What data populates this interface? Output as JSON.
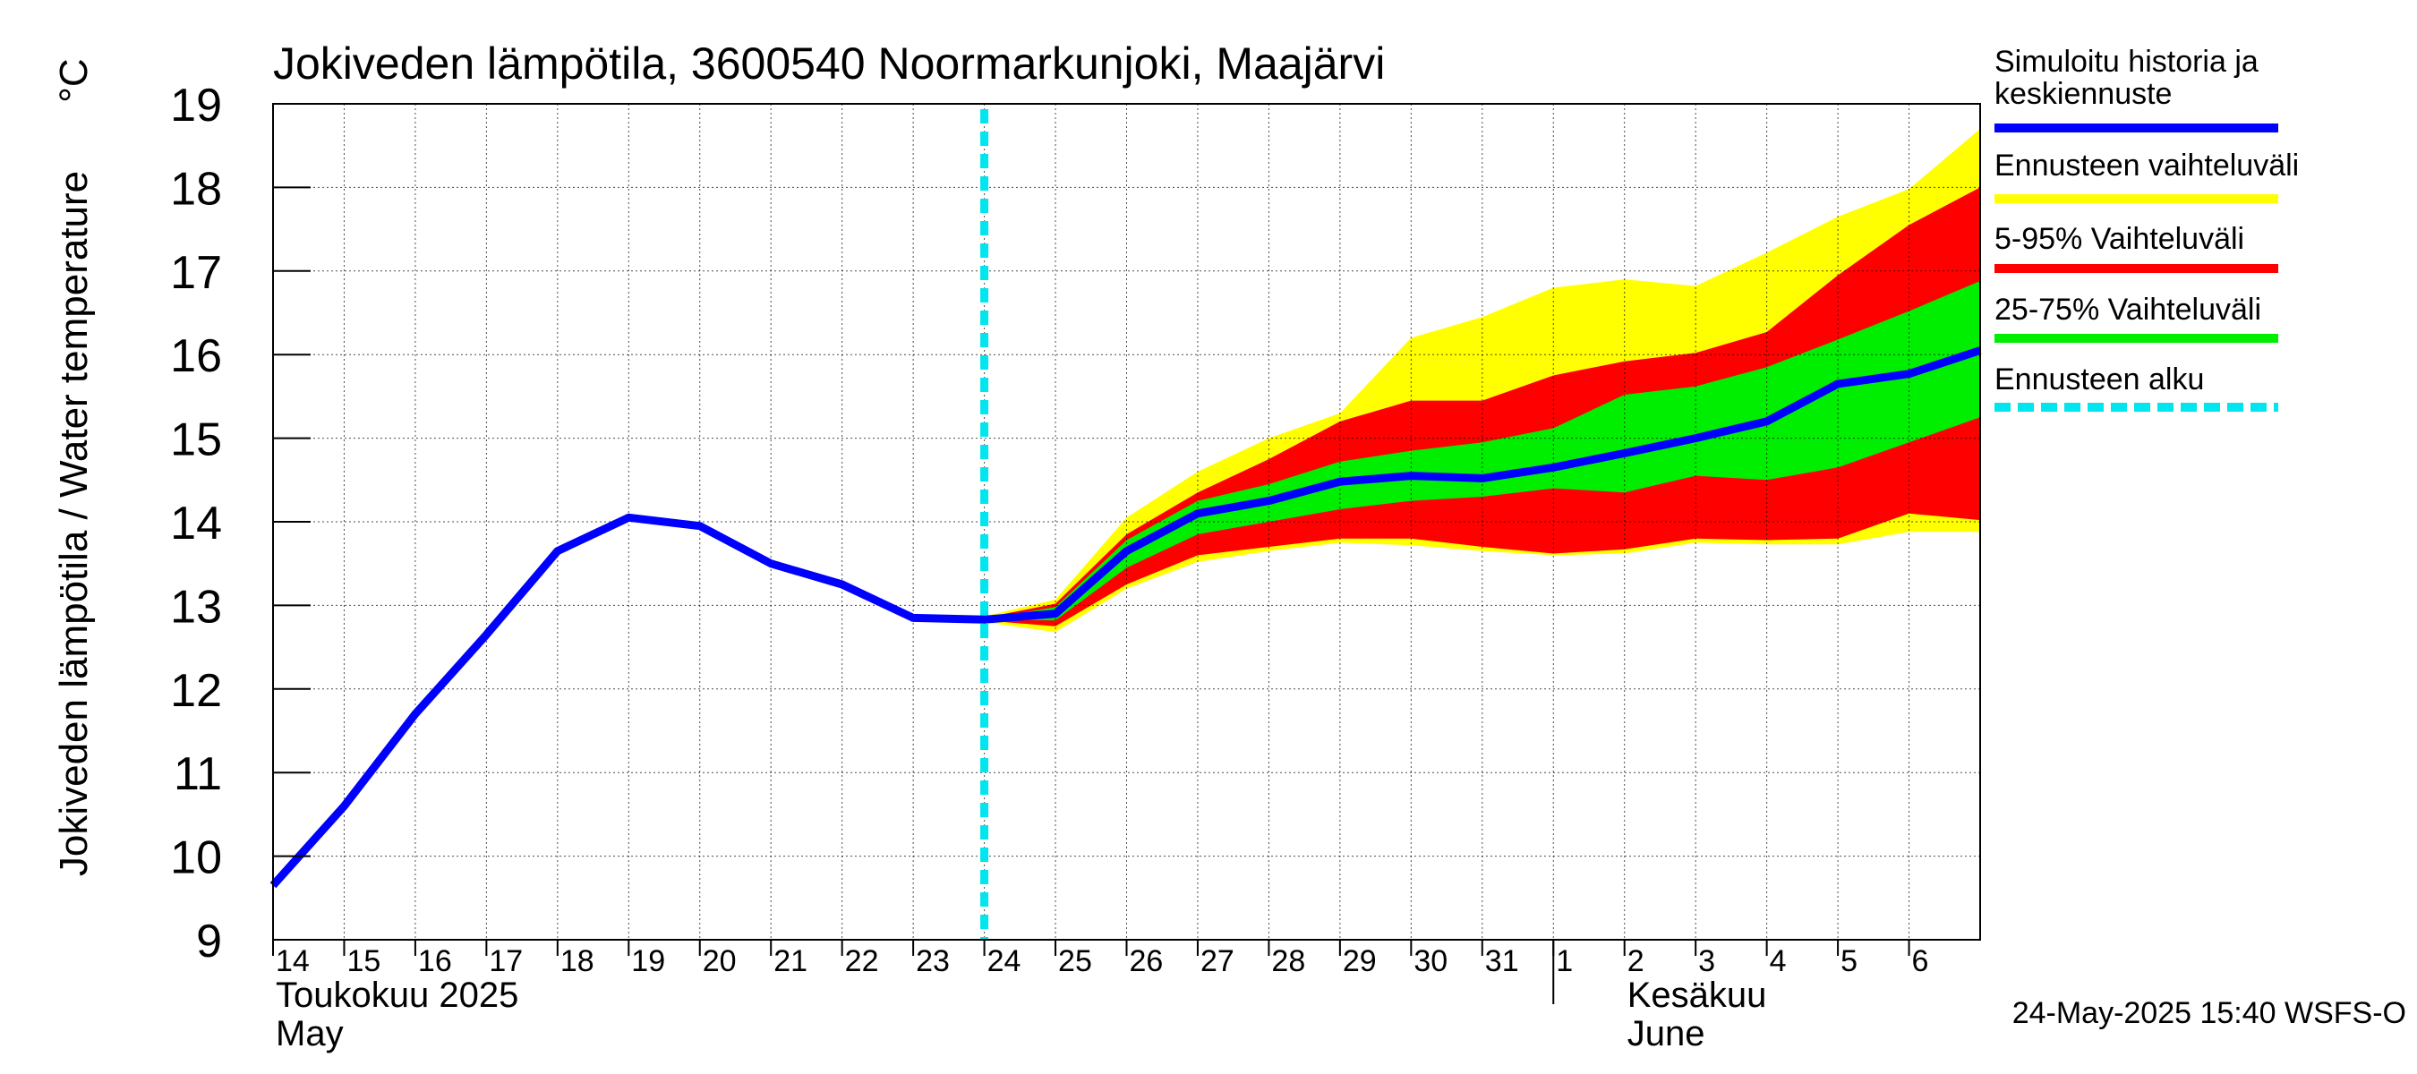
{
  "chart_data": {
    "type": "line",
    "title": "Jokiveden lämpötila, 3600540 Noormarkunjoki, Maajärvi",
    "ylabel": "Jokiveden lämpötila / Water temperature",
    "yunit": "°C",
    "ylim": [
      9,
      19
    ],
    "yticks": [
      9,
      10,
      11,
      12,
      13,
      14,
      15,
      16,
      17,
      18,
      19
    ],
    "xlim": [
      "2025-05-14",
      "2025-06-07"
    ],
    "grid": true,
    "legend_position": "right",
    "x_tick_labels": [
      {
        "date": "2025-05-14",
        "label": "14"
      },
      {
        "date": "2025-05-15",
        "label": "15"
      },
      {
        "date": "2025-05-16",
        "label": "16"
      },
      {
        "date": "2025-05-17",
        "label": "17"
      },
      {
        "date": "2025-05-18",
        "label": "18"
      },
      {
        "date": "2025-05-19",
        "label": "19"
      },
      {
        "date": "2025-05-20",
        "label": "20"
      },
      {
        "date": "2025-05-21",
        "label": "21"
      },
      {
        "date": "2025-05-22",
        "label": "22"
      },
      {
        "date": "2025-05-23",
        "label": "23"
      },
      {
        "date": "2025-05-24",
        "label": "24"
      },
      {
        "date": "2025-05-25",
        "label": "25"
      },
      {
        "date": "2025-05-26",
        "label": "26"
      },
      {
        "date": "2025-05-27",
        "label": "27"
      },
      {
        "date": "2025-05-28",
        "label": "28"
      },
      {
        "date": "2025-05-29",
        "label": "29"
      },
      {
        "date": "2025-05-30",
        "label": "30"
      },
      {
        "date": "2025-05-31",
        "label": "31"
      },
      {
        "date": "2025-06-01",
        "label": "1"
      },
      {
        "date": "2025-06-02",
        "label": "2"
      },
      {
        "date": "2025-06-03",
        "label": "3"
      },
      {
        "date": "2025-06-04",
        "label": "4"
      },
      {
        "date": "2025-06-05",
        "label": "5"
      },
      {
        "date": "2025-06-06",
        "label": "6"
      }
    ],
    "month_labels": [
      {
        "date": "2025-05-14",
        "fi": "Toukokuu  2025",
        "en": "May"
      },
      {
        "date": "2025-06-02",
        "fi": "Kesäkuu",
        "en": "June"
      }
    ],
    "month_divider": "2025-06-01",
    "forecast_start": "2025-05-24",
    "series": [
      {
        "name": "Simuloitu historia ja keskiennuste",
        "color": "#0000ff",
        "x": [
          "2025-05-14",
          "2025-05-15",
          "2025-05-16",
          "2025-05-17",
          "2025-05-18",
          "2025-05-19",
          "2025-05-20",
          "2025-05-21",
          "2025-05-22",
          "2025-05-23",
          "2025-05-24",
          "2025-05-25",
          "2025-05-26",
          "2025-05-27",
          "2025-05-28",
          "2025-05-29",
          "2025-05-30",
          "2025-05-31",
          "2025-06-01",
          "2025-06-02",
          "2025-06-03",
          "2025-06-04",
          "2025-06-05",
          "2025-06-06",
          "2025-06-07"
        ],
        "y": [
          9.65,
          10.6,
          11.7,
          12.65,
          13.65,
          14.05,
          13.95,
          13.5,
          13.25,
          12.85,
          12.83,
          12.9,
          13.65,
          14.1,
          14.25,
          14.48,
          14.55,
          14.52,
          14.65,
          14.82,
          15.0,
          15.2,
          15.65,
          15.77,
          16.05
        ]
      }
    ],
    "bands": [
      {
        "name": "Ennusteen vaihteluväli",
        "color": "#ffff00",
        "x": [
          "2025-05-24",
          "2025-05-25",
          "2025-05-26",
          "2025-05-27",
          "2025-05-28",
          "2025-05-29",
          "2025-05-30",
          "2025-05-31",
          "2025-06-01",
          "2025-06-02",
          "2025-06-03",
          "2025-06-04",
          "2025-06-05",
          "2025-06-06",
          "2025-06-07"
        ],
        "upper": [
          12.87,
          13.07,
          14.05,
          14.6,
          15.0,
          15.3,
          16.2,
          16.45,
          16.8,
          16.9,
          16.82,
          17.22,
          17.65,
          17.98,
          18.7
        ],
        "lower": [
          12.8,
          12.68,
          13.2,
          13.52,
          13.65,
          13.75,
          13.72,
          13.65,
          13.6,
          13.62,
          13.75,
          13.73,
          13.73,
          13.88,
          13.88
        ]
      },
      {
        "name": "5-95% Vaihteluväli",
        "color": "#ff0000",
        "x": [
          "2025-05-24",
          "2025-05-25",
          "2025-05-26",
          "2025-05-27",
          "2025-05-28",
          "2025-05-29",
          "2025-05-30",
          "2025-05-31",
          "2025-06-01",
          "2025-06-02",
          "2025-06-03",
          "2025-06-04",
          "2025-06-05",
          "2025-06-06",
          "2025-06-07"
        ],
        "upper": [
          12.85,
          13.02,
          13.85,
          14.35,
          14.75,
          15.2,
          15.45,
          15.45,
          15.75,
          15.92,
          16.02,
          16.27,
          16.95,
          17.55,
          18.0
        ],
        "lower": [
          12.82,
          12.75,
          13.25,
          13.6,
          13.7,
          13.8,
          13.8,
          13.7,
          13.62,
          13.67,
          13.8,
          13.78,
          13.8,
          14.1,
          14.02
        ]
      },
      {
        "name": "25-75% Vaihteluväli",
        "color": "#00ee00",
        "x": [
          "2025-05-24",
          "2025-05-25",
          "2025-05-26",
          "2025-05-27",
          "2025-05-28",
          "2025-05-29",
          "2025-05-30",
          "2025-05-31",
          "2025-06-01",
          "2025-06-02",
          "2025-06-03",
          "2025-06-04",
          "2025-06-05",
          "2025-06-06",
          "2025-06-07"
        ],
        "upper": [
          12.84,
          12.98,
          13.78,
          14.25,
          14.45,
          14.72,
          14.85,
          14.95,
          15.12,
          15.52,
          15.62,
          15.85,
          16.18,
          16.52,
          16.88
        ],
        "lower": [
          12.83,
          12.82,
          13.45,
          13.85,
          14.0,
          14.15,
          14.25,
          14.3,
          14.4,
          14.35,
          14.55,
          14.5,
          14.65,
          14.95,
          15.25
        ]
      }
    ],
    "legend": [
      {
        "label_lines": [
          "Simuloitu historia ja",
          "keskiennuste"
        ],
        "color": "#0000ff",
        "style": "solid"
      },
      {
        "label_lines": [
          "Ennusteen vaihteluväli"
        ],
        "color": "#ffff00",
        "style": "solid"
      },
      {
        "label_lines": [
          "5-95% Vaihteluväli"
        ],
        "color": "#ff0000",
        "style": "solid"
      },
      {
        "label_lines": [
          "25-75% Vaihteluväli"
        ],
        "color": "#00ee00",
        "style": "solid"
      },
      {
        "label_lines": [
          "Ennusteen alku"
        ],
        "color": "#00e5ee",
        "style": "dashed"
      }
    ],
    "footer": "24-May-2025 15:40 WSFS-O"
  }
}
